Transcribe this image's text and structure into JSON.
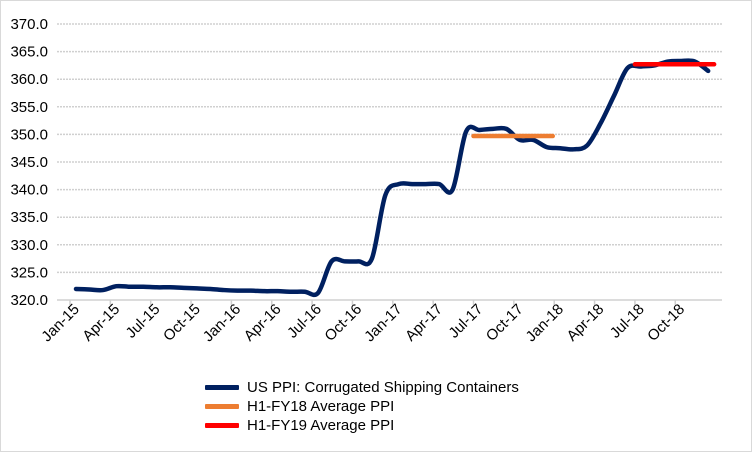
{
  "chart_data": {
    "type": "line",
    "title": "",
    "xlabel": "",
    "ylabel": "",
    "ylim": [
      320,
      370
    ],
    "yticks": [
      "320.0",
      "325.0",
      "330.0",
      "335.0",
      "340.0",
      "345.0",
      "350.0",
      "355.0",
      "360.0",
      "365.0",
      "370.0"
    ],
    "xticks": [
      "Jan-15",
      "Apr-15",
      "Jul-15",
      "Oct-15",
      "Jan-16",
      "Apr-16",
      "Jul-16",
      "Oct-16",
      "Jan-17",
      "Apr-17",
      "Jul-17",
      "Oct-17",
      "Jan-18",
      "Apr-18",
      "Jul-18",
      "Oct-18"
    ],
    "grid": true,
    "legend_position": "bottom",
    "series": [
      {
        "name": "US PPI: Corrugated Shipping Containers",
        "color": "#002060",
        "start_month": "Jan-15",
        "values": [
          322.0,
          321.9,
          321.8,
          322.5,
          322.4,
          322.4,
          322.3,
          322.3,
          322.2,
          322.1,
          322.0,
          321.8,
          321.7,
          321.7,
          321.6,
          321.6,
          321.5,
          321.5,
          321.3,
          327.0,
          327.0,
          327.0,
          327.5,
          339.0,
          341.0,
          341.0,
          341.0,
          341.0,
          340.0,
          350.5,
          350.8,
          351.0,
          351.0,
          349.0,
          349.0,
          347.7,
          347.5,
          347.3,
          348.0,
          352.0,
          357.0,
          362.0,
          362.3,
          362.5,
          363.2,
          363.3,
          363.2,
          361.5
        ]
      },
      {
        "name": "H1-FY18 Average PPI",
        "color": "#ED7D31",
        "from_month_index": 30,
        "to_month_index": 35,
        "value": 349.7
      },
      {
        "name": "H1-FY19 Average PPI",
        "color": "#FF0000",
        "from_month_index": 42,
        "to_month_index": 47,
        "value": 362.7
      }
    ]
  }
}
